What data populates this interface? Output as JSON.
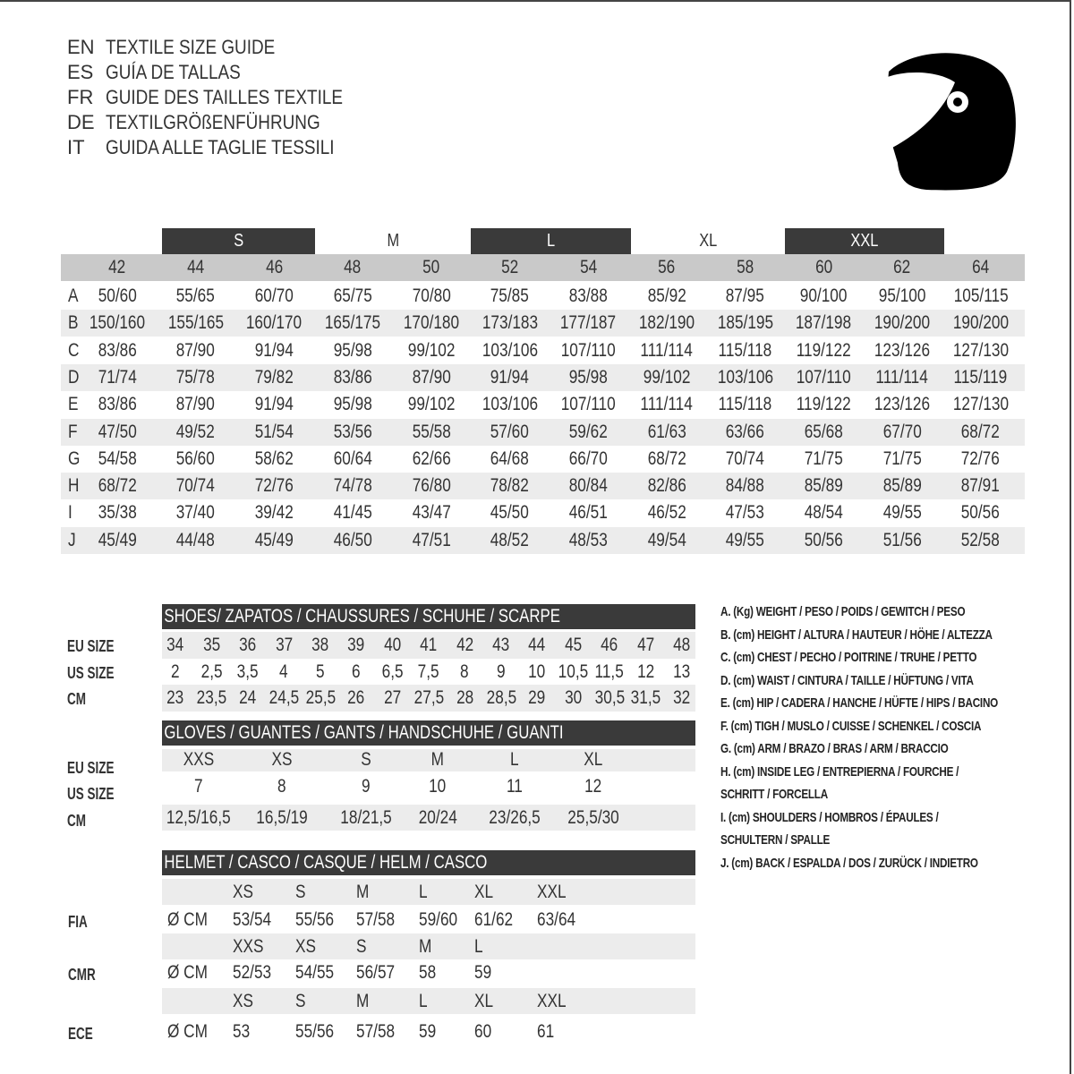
{
  "titles": [
    {
      "code": "EN",
      "text": "TEXTILE SIZE GUIDE"
    },
    {
      "code": "ES",
      "text": "GUÍA DE TALLAS"
    },
    {
      "code": "FR",
      "text": "GUIDE DES TAILLES TEXTILE"
    },
    {
      "code": "DE",
      "text": "TEXTILGRÖßENFÜHRUNG"
    },
    {
      "code": "IT",
      "text": "GUIDA ALLE TAGLIE TESSILI"
    }
  ],
  "logo_icon": "helmet-icon",
  "colors": {
    "dark_bar": "#3a3a3a",
    "header_gray": "#c9c9c9",
    "row_alt": "#ececec"
  },
  "textile": {
    "size_bands": [
      {
        "label": "S",
        "style": "dark"
      },
      {
        "label": "M",
        "style": "light"
      },
      {
        "label": "L",
        "style": "dark"
      },
      {
        "label": "XL",
        "style": "light"
      },
      {
        "label": "XXL",
        "style": "dark"
      }
    ],
    "columns": [
      "42",
      "44",
      "46",
      "48",
      "50",
      "52",
      "54",
      "56",
      "58",
      "60",
      "62",
      "64"
    ],
    "rows": [
      {
        "label": "A",
        "values": [
          "50/60",
          "55/65",
          "60/70",
          "65/75",
          "70/80",
          "75/85",
          "83/88",
          "85/92",
          "87/95",
          "90/100",
          "95/100",
          "105/115"
        ]
      },
      {
        "label": "B",
        "values": [
          "150/160",
          "155/165",
          "160/170",
          "165/175",
          "170/180",
          "173/183",
          "177/187",
          "182/190",
          "185/195",
          "187/198",
          "190/200",
          "190/200"
        ]
      },
      {
        "label": "C",
        "values": [
          "83/86",
          "87/90",
          "91/94",
          "95/98",
          "99/102",
          "103/106",
          "107/110",
          "111/114",
          "115/118",
          "119/122",
          "123/126",
          "127/130"
        ]
      },
      {
        "label": "D",
        "values": [
          "71/74",
          "75/78",
          "79/82",
          "83/86",
          "87/90",
          "91/94",
          "95/98",
          "99/102",
          "103/106",
          "107/110",
          "111/114",
          "115/119"
        ]
      },
      {
        "label": "E",
        "values": [
          "83/86",
          "87/90",
          "91/94",
          "95/98",
          "99/102",
          "103/106",
          "107/110",
          "111/114",
          "115/118",
          "119/122",
          "123/126",
          "127/130"
        ]
      },
      {
        "label": "F",
        "values": [
          "47/50",
          "49/52",
          "51/54",
          "53/56",
          "55/58",
          "57/60",
          "59/62",
          "61/63",
          "63/66",
          "65/68",
          "67/70",
          "68/72"
        ]
      },
      {
        "label": "G",
        "values": [
          "54/58",
          "56/60",
          "58/62",
          "60/64",
          "62/66",
          "64/68",
          "66/70",
          "68/72",
          "70/74",
          "71/75",
          "71/75",
          "72/76"
        ]
      },
      {
        "label": "H",
        "values": [
          "68/72",
          "70/74",
          "72/76",
          "74/78",
          "76/80",
          "78/82",
          "80/84",
          "82/86",
          "84/88",
          "85/89",
          "85/89",
          "87/91"
        ]
      },
      {
        "label": "I",
        "values": [
          "35/38",
          "37/40",
          "39/42",
          "41/45",
          "43/47",
          "45/50",
          "46/51",
          "46/52",
          "47/53",
          "48/54",
          "49/55",
          "50/56"
        ]
      },
      {
        "label": "J",
        "values": [
          "45/49",
          "44/48",
          "45/49",
          "46/50",
          "47/51",
          "48/52",
          "48/53",
          "49/54",
          "49/55",
          "50/56",
          "51/56",
          "52/58"
        ]
      }
    ]
  },
  "shoes": {
    "title": "SHOES/ ZAPATOS / CHAUSSURES / SCHUHE / SCARPE",
    "rows": [
      {
        "label": "EU SIZE",
        "values": [
          "34",
          "35",
          "36",
          "37",
          "38",
          "39",
          "40",
          "41",
          "42",
          "43",
          "44",
          "45",
          "46",
          "47",
          "48"
        ]
      },
      {
        "label": "US SIZE",
        "values": [
          "2",
          "2,5",
          "3,5",
          "4",
          "5",
          "6",
          "6,5",
          "7,5",
          "8",
          "9",
          "10",
          "10,5",
          "11,5",
          "12",
          "13"
        ]
      },
      {
        "label": "CM",
        "values": [
          "23",
          "23,5",
          "24",
          "24,5",
          "25,5",
          "26",
          "27",
          "27,5",
          "28",
          "28,5",
          "29",
          "30",
          "30,5",
          "31,5",
          "32"
        ]
      }
    ]
  },
  "gloves": {
    "title": "GLOVES / GUANTES / GANTS / HANDSCHUHE / GUANTI",
    "rows": [
      {
        "label": "EU SIZE",
        "values": [
          "XXS",
          "XS",
          "S",
          "M",
          "L",
          "XL"
        ]
      },
      {
        "label": "US SIZE",
        "values": [
          "7",
          "8",
          "9",
          "10",
          "11",
          "12"
        ]
      },
      {
        "label": "CM",
        "values": [
          "12,5/16,5",
          "16,5/19",
          "18/21,5",
          "20/24",
          "23/26,5",
          "25,5/30"
        ]
      }
    ]
  },
  "helmet": {
    "title": "HELMET / CASCO / CASQUE / HELM / CASCO",
    "unit": "Ø CM",
    "standards": [
      {
        "label": "FIA",
        "sizes": [
          "XS",
          "S",
          "M",
          "L",
          "XL",
          "XXL"
        ],
        "values": [
          "53/54",
          "55/56",
          "57/58",
          "59/60",
          "61/62",
          "63/64"
        ]
      },
      {
        "label": "CMR",
        "sizes": [
          "XXS",
          "XS",
          "S",
          "M",
          "L"
        ],
        "values": [
          "52/53",
          "54/55",
          "56/57",
          "58",
          "59"
        ]
      },
      {
        "label": "ECE",
        "sizes": [
          "XS",
          "S",
          "M",
          "L",
          "XL",
          "XXL"
        ],
        "values": [
          "53",
          "55/56",
          "57/58",
          "59",
          "60",
          "61"
        ]
      }
    ]
  },
  "legend": [
    "A. (Kg) WEIGHT / PESO / POIDS / GEWITCH / PESO",
    "B. (cm) HEIGHT / ALTURA / HAUTEUR / HÖHE / ALTEZZA",
    "C. (cm) CHEST / PECHO / POITRINE / TRUHE / PETTO",
    "D. (cm) WAIST / CINTURA / TAILLE / HÜFTUNG / VITA",
    "E. (cm) HIP / CADERA / HANCHE / HÜFTE / HIPS /  BACINO",
    "F.  (cm) TIGH / MUSLO / CUISSE / SCHENKEL / COSCIA",
    "G. (cm) ARM  / BRAZO / BRAS / ARM / BRACCIO",
    "H. (cm) INSIDE LEG / ENTREPIERNA / FOURCHE /",
    "SCHRITT / FORCELLA",
    "I.  (cm) SHOULDERS / HOMBROS / ÉPAULES /",
    "SCHULTERN / SPALLE",
    "J. (cm) BACK / ESPALDA / DOS / ZURÜCK / INDIETRO"
  ]
}
